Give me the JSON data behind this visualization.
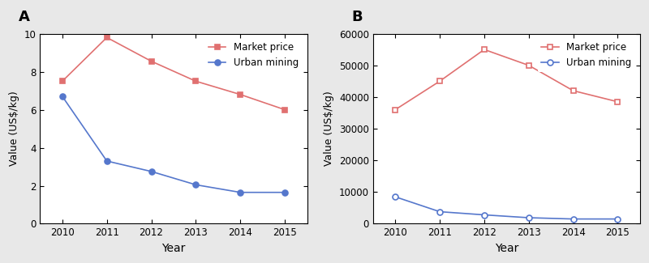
{
  "years": [
    2010,
    2011,
    2012,
    2013,
    2014,
    2015
  ],
  "panel_A": {
    "market_price": [
      7.5,
      9.8,
      8.55,
      7.5,
      6.8,
      6.0
    ],
    "urban_mining": [
      6.7,
      3.3,
      2.75,
      2.05,
      1.65,
      1.65
    ],
    "ylabel": "Value (US$/kg)",
    "xlabel": "Year",
    "ylim": [
      0,
      10
    ],
    "yticks": [
      0,
      2,
      4,
      6,
      8,
      10
    ],
    "label": "A",
    "mp_marker": "s",
    "um_marker": "o",
    "mp_filled": true,
    "um_filled": true
  },
  "panel_B": {
    "market_price": [
      36000,
      45000,
      55000,
      50000,
      42000,
      38500
    ],
    "urban_mining": [
      8500,
      3800,
      2800,
      1900,
      1500,
      1500
    ],
    "ylabel": "Value (US$/kg)",
    "xlabel": "Year",
    "ylim": [
      0,
      60000
    ],
    "yticks": [
      0,
      10000,
      20000,
      30000,
      40000,
      50000,
      60000
    ],
    "label": "B",
    "mp_marker": "s",
    "um_marker": "o",
    "mp_filled": false,
    "um_filled": false
  },
  "market_price_color": "#e07070",
  "urban_mining_color": "#5577cc",
  "legend_market": "Market price",
  "legend_urban": "Urban mining",
  "bg_color": "#e8e8e8",
  "plot_bg_color": "#ffffff",
  "fig_width": 8.0,
  "fig_height": 3.25,
  "dpi": 100
}
